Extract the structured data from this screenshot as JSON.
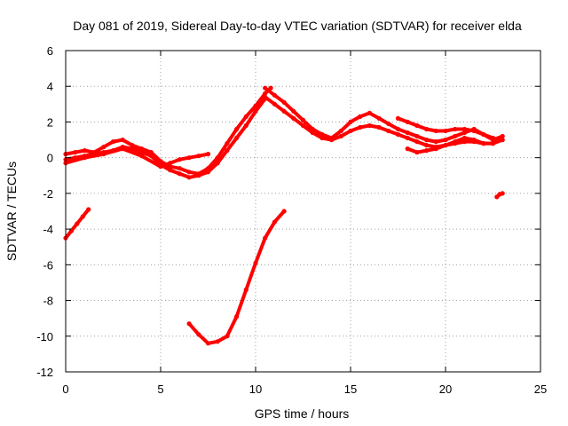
{
  "chart_data": {
    "type": "scatter",
    "title": "Day 081 of 2019, Sidereal Day-to-day VTEC variation (SDTVAR) for receiver elda",
    "xlabel": "GPS time / hours",
    "ylabel": "SDTVAR / TECUs",
    "xlim": [
      0,
      25
    ],
    "ylim": [
      -12,
      6
    ],
    "xticks": [
      0,
      5,
      10,
      15,
      20,
      25
    ],
    "yticks": [
      -12,
      -10,
      -8,
      -6,
      -4,
      -2,
      0,
      2,
      4,
      6
    ],
    "xtick_labels": [
      "0",
      "5",
      "10",
      "15",
      "20",
      "25"
    ],
    "ytick_labels": [
      "-12",
      "-10",
      "-8",
      "-6",
      "-4",
      "-2",
      "0",
      "2",
      "4",
      "6"
    ],
    "grid": true,
    "series_color": "#ff0000",
    "series": [
      {
        "name": "track-1",
        "x": [
          0.0,
          0.5,
          1.0,
          1.5,
          2.0,
          2.5,
          3.0,
          3.5,
          4.0,
          4.5,
          5.0,
          5.5,
          6.0,
          6.5,
          7.0,
          7.5,
          8.0,
          8.5,
          9.0,
          9.5,
          10.0,
          10.5,
          10.8
        ],
        "y": [
          0.2,
          0.3,
          0.4,
          0.3,
          0.6,
          0.9,
          1.0,
          0.7,
          0.5,
          0.3,
          -0.2,
          -0.5,
          -0.6,
          -0.8,
          -0.9,
          -0.6,
          0.0,
          0.8,
          1.6,
          2.3,
          2.9,
          3.6,
          3.9
        ]
      },
      {
        "name": "track-2",
        "x": [
          0.0,
          0.5,
          1.0,
          1.5,
          2.0,
          2.5,
          3.0,
          3.5,
          4.0,
          4.5,
          5.0,
          5.5,
          6.0,
          6.5,
          7.0,
          7.5,
          8.0,
          8.5,
          9.0,
          9.5,
          10.0,
          10.5
        ],
        "y": [
          -0.1,
          0.0,
          0.1,
          0.2,
          0.3,
          0.4,
          0.6,
          0.5,
          0.3,
          0.1,
          -0.4,
          -0.7,
          -0.9,
          -1.1,
          -1.0,
          -0.8,
          -0.3,
          0.4,
          1.1,
          1.8,
          2.6,
          3.3
        ]
      },
      {
        "name": "track-3",
        "x": [
          0.0,
          1.0,
          2.0,
          3.0,
          4.0,
          5.0,
          5.5,
          6.0,
          6.5,
          7.0,
          7.5
        ],
        "y": [
          -0.3,
          0.0,
          0.2,
          0.5,
          0.1,
          -0.5,
          -0.3,
          -0.1,
          0.0,
          0.1,
          0.2
        ]
      },
      {
        "name": "track-4",
        "x": [
          10.5,
          11.0,
          11.5,
          12.0,
          12.5,
          13.0,
          13.5,
          14.0,
          14.5,
          15.0,
          15.5,
          16.0,
          16.5,
          17.0,
          17.5,
          18.0,
          18.5,
          19.0,
          19.5,
          20.0,
          20.5,
          21.0,
          21.5,
          22.0,
          22.5,
          23.0
        ],
        "y": [
          3.9,
          3.5,
          3.1,
          2.6,
          2.1,
          1.6,
          1.3,
          1.1,
          1.5,
          2.0,
          2.3,
          2.5,
          2.2,
          1.9,
          1.6,
          1.4,
          1.2,
          1.0,
          0.9,
          1.0,
          1.2,
          1.4,
          1.6,
          1.3,
          1.0,
          1.2
        ]
      },
      {
        "name": "track-5",
        "x": [
          10.5,
          11.0,
          11.5,
          12.0,
          12.5,
          13.0,
          13.5,
          14.0,
          14.5,
          15.0,
          15.5,
          16.0,
          16.5,
          17.0,
          17.5,
          18.0,
          18.5,
          19.0,
          19.5,
          20.0,
          20.5,
          21.0,
          21.5,
          22.0,
          22.5,
          23.0
        ],
        "y": [
          3.4,
          3.0,
          2.6,
          2.2,
          1.8,
          1.4,
          1.1,
          1.0,
          1.2,
          1.5,
          1.7,
          1.8,
          1.7,
          1.5,
          1.3,
          1.1,
          0.9,
          0.7,
          0.6,
          0.7,
          0.9,
          1.1,
          1.0,
          0.8,
          0.8,
          1.0
        ]
      },
      {
        "name": "track-6",
        "x": [
          17.5,
          18.0,
          18.5,
          19.0,
          19.5,
          20.0,
          20.5,
          21.0,
          21.5,
          22.0,
          22.5
        ],
        "y": [
          2.2,
          2.0,
          1.8,
          1.6,
          1.5,
          1.5,
          1.6,
          1.6,
          1.5,
          1.3,
          1.1
        ]
      },
      {
        "name": "track-7",
        "x": [
          18.0,
          18.5,
          19.0,
          19.5,
          20.0,
          20.5,
          21.0,
          21.5,
          22.0,
          22.5
        ],
        "y": [
          0.5,
          0.3,
          0.4,
          0.5,
          0.7,
          0.8,
          0.9,
          0.9,
          0.8,
          0.8
        ]
      },
      {
        "name": "track-8",
        "x": [
          0.0,
          0.3,
          0.6,
          0.9,
          1.2
        ],
        "y": [
          -4.5,
          -4.1,
          -3.7,
          -3.3,
          -2.9
        ]
      },
      {
        "name": "track-9",
        "x": [
          6.5,
          7.0,
          7.5,
          8.0,
          8.5,
          9.0,
          9.5,
          10.0,
          10.5,
          11.0,
          11.5
        ],
        "y": [
          -9.3,
          -9.9,
          -10.4,
          -10.3,
          -10.0,
          -8.9,
          -7.4,
          -5.9,
          -4.5,
          -3.6,
          -3.0
        ]
      },
      {
        "name": "track-10",
        "x": [
          22.7,
          22.85,
          23.0
        ],
        "y": [
          -2.2,
          -2.05,
          -2.0
        ]
      }
    ]
  }
}
